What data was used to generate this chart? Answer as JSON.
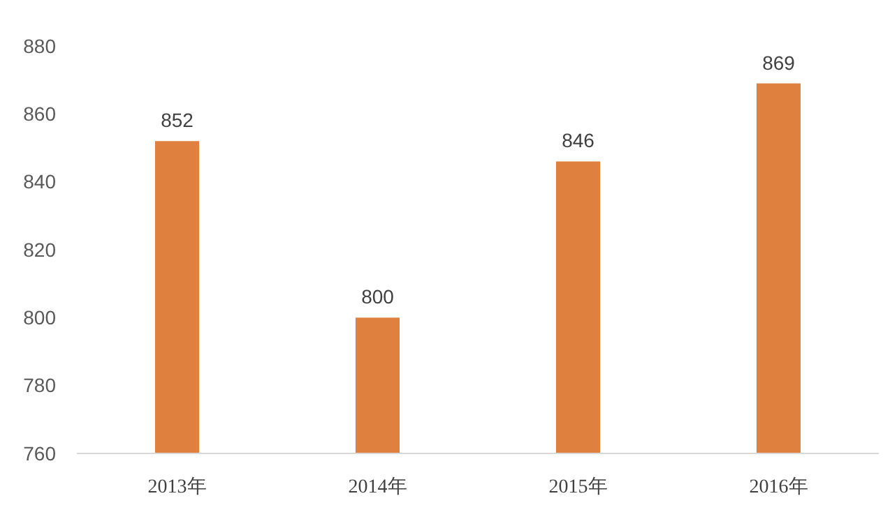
{
  "chart_data": {
    "type": "bar",
    "categories": [
      "2013年",
      "2014年",
      "2015年",
      "2016年"
    ],
    "values": [
      852,
      800,
      846,
      869
    ],
    "color": "#e0803f",
    "ylim": [
      760,
      880
    ],
    "yticks": [
      760,
      780,
      800,
      820,
      840,
      860,
      880
    ],
    "grid": false,
    "data_labels": true
  }
}
